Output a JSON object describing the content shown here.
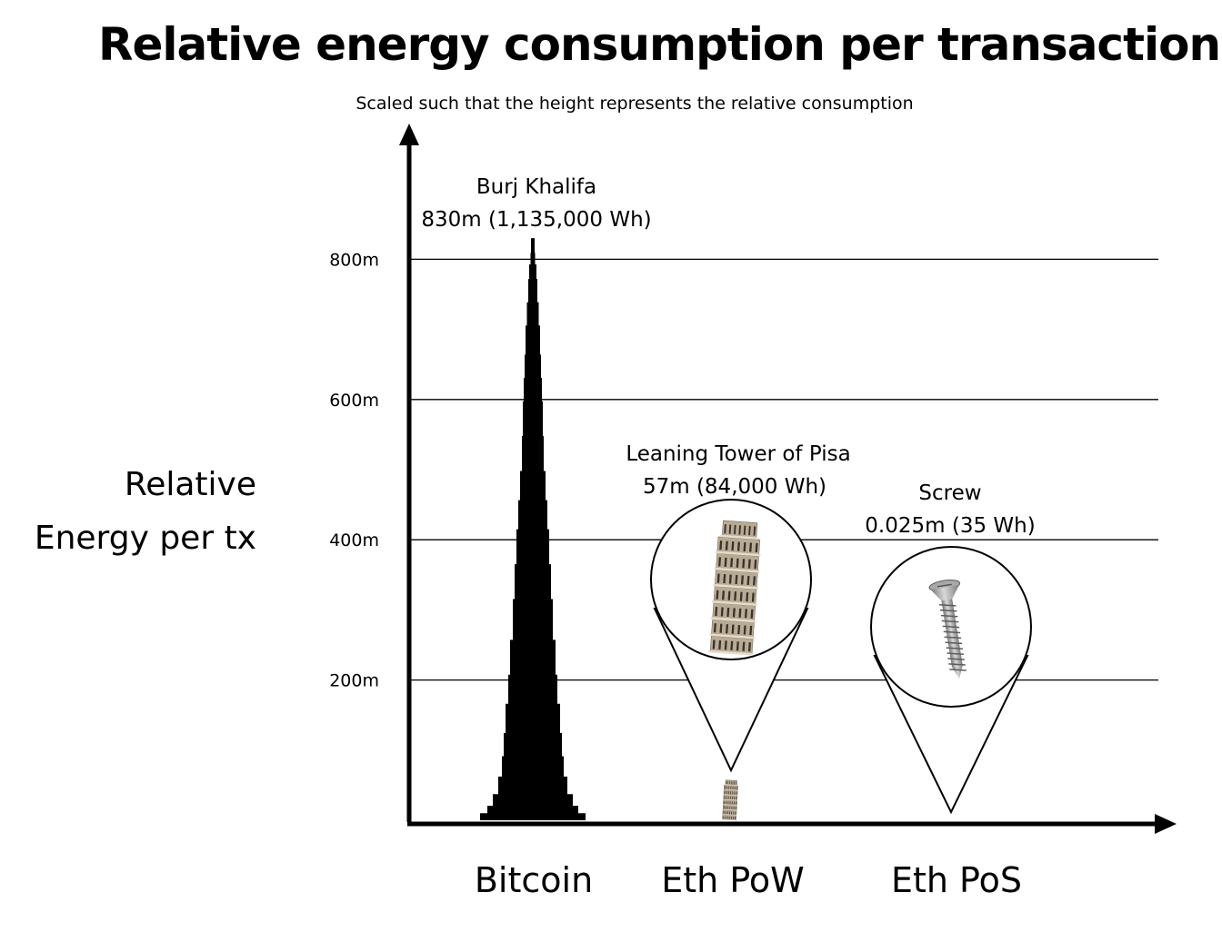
{
  "chart_data": {
    "type": "bar",
    "title": "Relative energy consumption per transaction",
    "subtitle": "Scaled such that the height represents the relative consumption",
    "ylabel_lines": [
      "Relative",
      "Energy per tx"
    ],
    "xlabel": "",
    "unit": "m",
    "ylim": [
      0,
      800
    ],
    "yticks": [
      200,
      400,
      600,
      800
    ],
    "ytick_labels": [
      "200m",
      "400m",
      "600m",
      "800m"
    ],
    "grid": true,
    "categories": [
      "Bitcoin",
      "Eth PoW",
      "Eth PoS"
    ],
    "values": [
      830,
      57,
      0.025
    ],
    "energy_wh": [
      1135000,
      84000,
      35
    ],
    "annotations": [
      {
        "line1": "Burj Khalifa",
        "line2": "830m (1,135,000 Wh)"
      },
      {
        "line1": "Leaning Tower of Pisa",
        "line2": "57m (84,000 Wh)"
      },
      {
        "line1": "Screw",
        "line2": "0.025m (35 Wh)"
      }
    ],
    "pictograms": [
      "burj-khalifa-silhouette",
      "leaning-tower-of-pisa",
      "screw"
    ],
    "colors": {
      "axis": "#000000",
      "grid": "#000000",
      "bar": "#000000",
      "tower": "#b8ab96",
      "screw": "#9a9a9a"
    }
  }
}
